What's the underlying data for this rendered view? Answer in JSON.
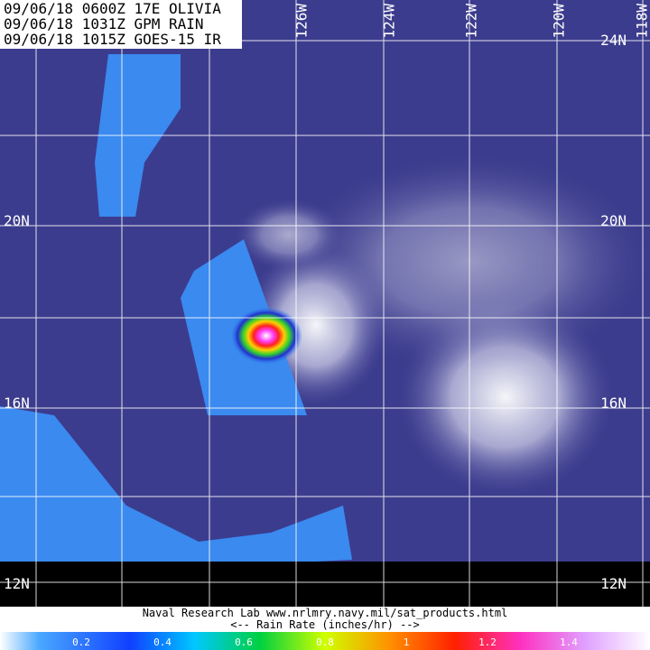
{
  "header": {
    "lines": [
      "09/06/18 0600Z 17E OLIVIA",
      "09/06/18 1031Z GPM RAIN",
      "09/06/18 1015Z GOES-15 IR"
    ]
  },
  "longitudes": [
    "126W",
    "124W",
    "122W",
    "120W",
    "118W"
  ],
  "latitudes_left": [
    "20N",
    "16N",
    "12N"
  ],
  "latitudes_right": [
    "24N",
    "20N",
    "16N",
    "12N"
  ],
  "footer": {
    "credit": "Naval Research Lab  www.nrlmry.navy.mil/sat_products.html",
    "legend_title": "<--  Rain Rate (inches/hr)  -->"
  },
  "colorbar": {
    "range": [
      0,
      1.6
    ],
    "ticks": [
      0.2,
      0.4,
      0.6,
      0.8,
      1,
      1.2,
      1.4
    ]
  }
}
